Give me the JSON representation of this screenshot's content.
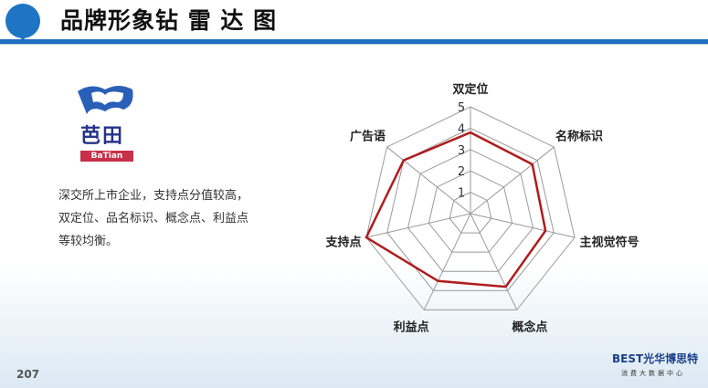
{
  "header": {
    "title": "品牌形象钻 雷 达 图"
  },
  "brand": {
    "name_cn": "芭田",
    "name_en": "BaTian"
  },
  "description": "深交所上市企业，支持点分值较高，双定位、品名标识、概念点、利益点等较均衡。",
  "page_number": "207",
  "footer_logo": {
    "name": "BEST光华博思特",
    "subtitle": "消费大数据中心"
  },
  "colors": {
    "accent": "#1f6fc0",
    "series": "#b01c1c",
    "grid": "#9a9a9a"
  },
  "chart_data": {
    "type": "radar",
    "categories": [
      "双定位",
      "名称标识",
      "主视觉符号",
      "概念点",
      "利益点",
      "支持点",
      "广告语"
    ],
    "values": [
      3.8,
      3.7,
      3.6,
      3.8,
      3.5,
      5,
      4.0
    ],
    "ticks": [
      "1",
      "2",
      "3",
      "4",
      "5"
    ],
    "range": [
      0,
      5
    ],
    "grid": true
  }
}
